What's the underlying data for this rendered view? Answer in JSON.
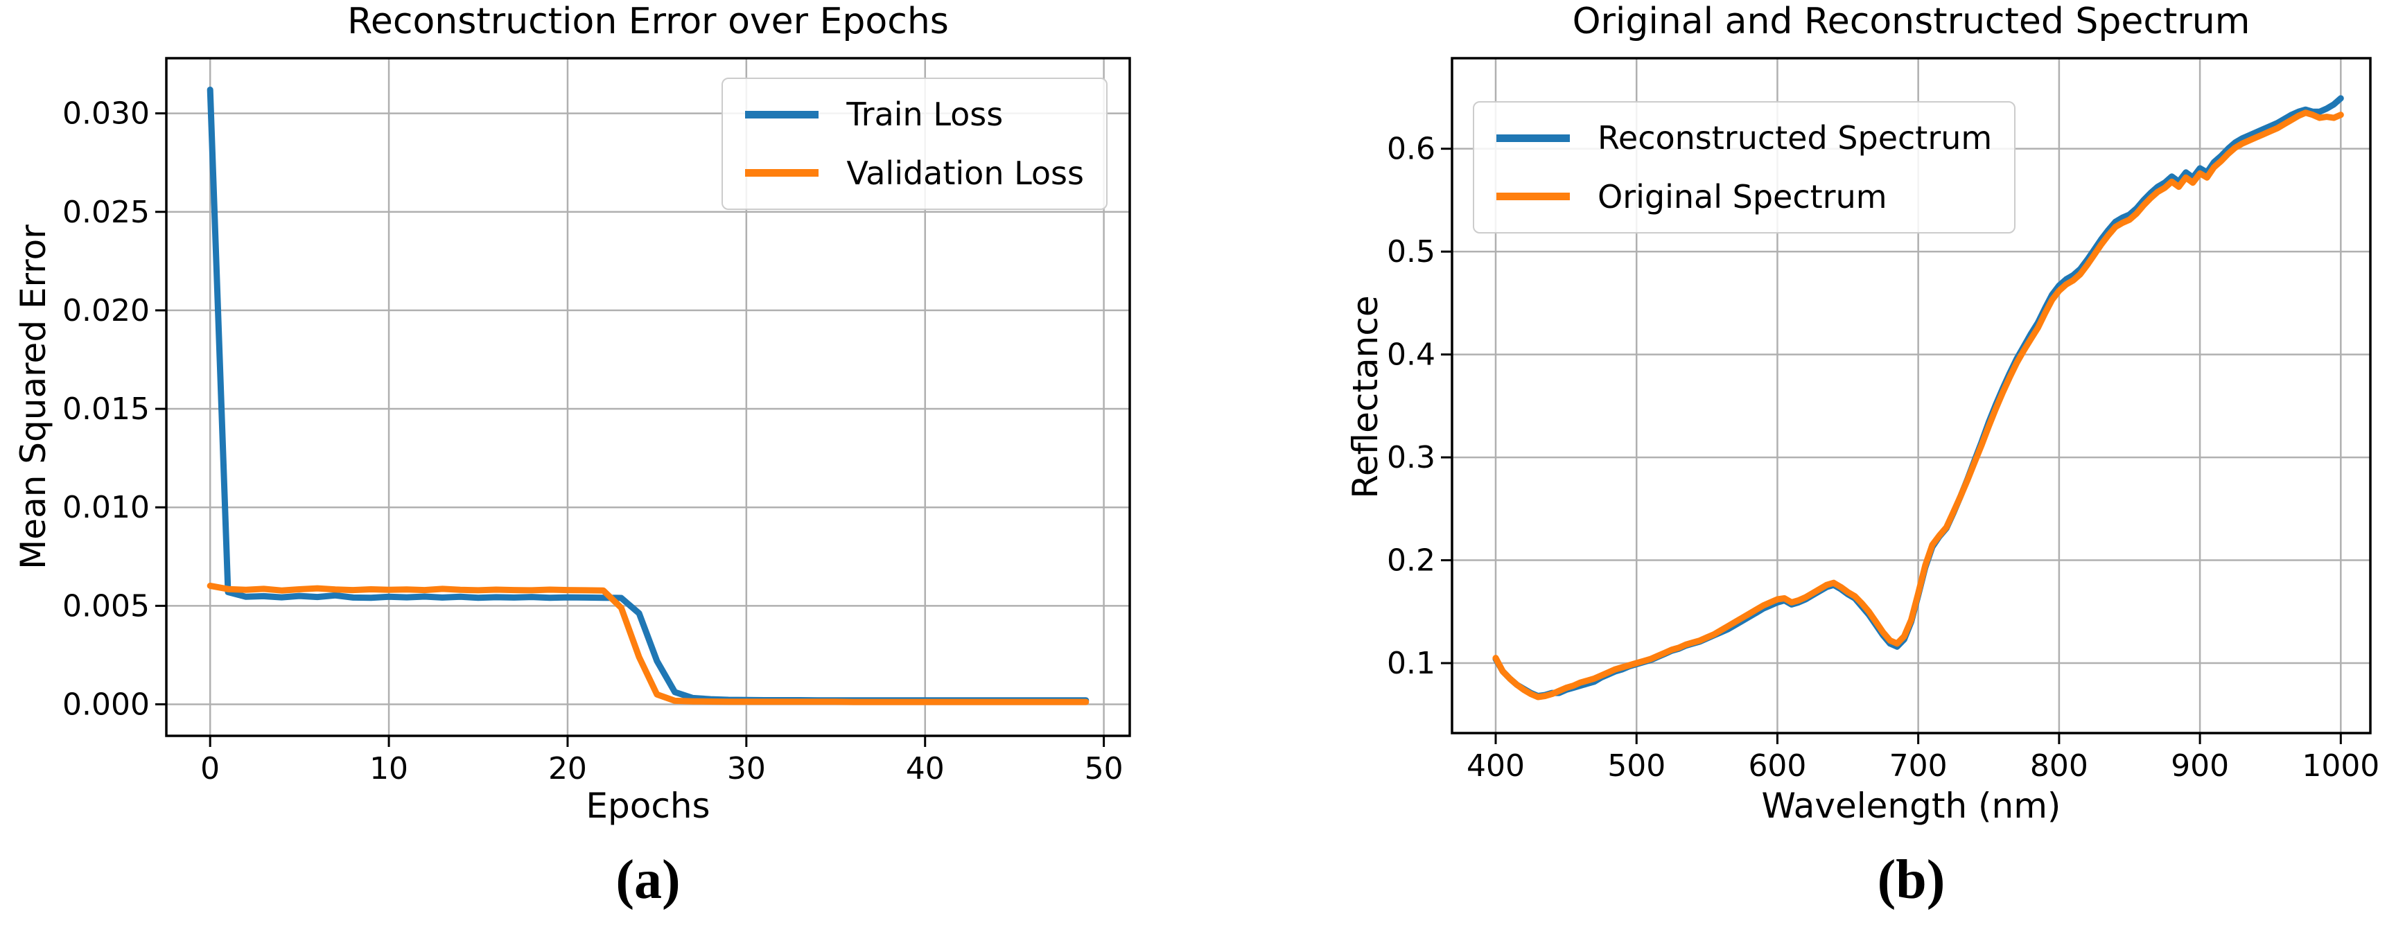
{
  "style": {
    "background": "#ffffff",
    "grid_color": "#b0b0b0",
    "spine_color": "#000000",
    "text_color": "#000000",
    "legend_border": "#cccccc",
    "accent_blue": "#1f77b4",
    "accent_orange": "#ff7f0e"
  },
  "captions": {
    "left": "(a)",
    "right": "(b)"
  },
  "chart_data": [
    {
      "id": "reconstruction-error",
      "type": "line",
      "title": "Reconstruction Error over Epochs",
      "xlabel": "Epochs",
      "ylabel": "Mean Squared Error",
      "grid": true,
      "legend_position": "upper-right",
      "xlim": [
        -2.45,
        51.45
      ],
      "ylim": [
        -0.0016,
        0.0328
      ],
      "xticks": [
        0,
        10,
        20,
        30,
        40,
        50
      ],
      "xtick_labels": [
        "0",
        "10",
        "20",
        "30",
        "40",
        "50"
      ],
      "yticks": [
        0.0,
        0.005,
        0.01,
        0.015,
        0.02,
        0.025,
        0.03
      ],
      "ytick_labels": [
        "0.000",
        "0.005",
        "0.010",
        "0.015",
        "0.020",
        "0.025",
        "0.030"
      ],
      "series": [
        {
          "name": "Train Loss",
          "color": "#1f77b4",
          "x": [
            0,
            1,
            2,
            3,
            4,
            5,
            6,
            7,
            8,
            9,
            10,
            11,
            12,
            13,
            14,
            15,
            16,
            17,
            18,
            19,
            20,
            21,
            22,
            23,
            24,
            25,
            26,
            27,
            28,
            29,
            30,
            31,
            32,
            33,
            34,
            35,
            36,
            37,
            38,
            39,
            40,
            41,
            42,
            43,
            44,
            45,
            46,
            47,
            48,
            49
          ],
          "y": [
            0.0312,
            0.0057,
            0.00546,
            0.00549,
            0.00543,
            0.0055,
            0.00545,
            0.00553,
            0.00542,
            0.00541,
            0.00546,
            0.00543,
            0.00547,
            0.00542,
            0.00546,
            0.00541,
            0.00544,
            0.00542,
            0.00545,
            0.00541,
            0.00543,
            0.00542,
            0.00541,
            0.0054,
            0.00462,
            0.0022,
            0.00062,
            0.00032,
            0.00026,
            0.00023,
            0.00022,
            0.00021,
            0.00021,
            0.00021,
            0.0002,
            0.0002,
            0.0002,
            0.0002,
            0.0002,
            0.0002,
            0.0002,
            0.0002,
            0.0002,
            0.0002,
            0.0002,
            0.0002,
            0.0002,
            0.0002,
            0.0002,
            0.0002
          ]
        },
        {
          "name": "Validation Loss",
          "color": "#ff7f0e",
          "x": [
            0,
            1,
            2,
            3,
            4,
            5,
            6,
            7,
            8,
            9,
            10,
            11,
            12,
            13,
            14,
            15,
            16,
            17,
            18,
            19,
            20,
            21,
            22,
            23,
            24,
            25,
            26,
            27,
            28,
            29,
            30,
            31,
            32,
            33,
            34,
            35,
            36,
            37,
            38,
            39,
            40,
            41,
            42,
            43,
            44,
            45,
            46,
            47,
            48,
            49
          ],
          "y": [
            0.00602,
            0.00585,
            0.00581,
            0.00586,
            0.00578,
            0.00584,
            0.00589,
            0.00583,
            0.0058,
            0.00584,
            0.00581,
            0.00583,
            0.0058,
            0.00586,
            0.00581,
            0.00579,
            0.00582,
            0.0058,
            0.00579,
            0.00582,
            0.0058,
            0.00579,
            0.00578,
            0.0049,
            0.0024,
            0.0005,
            0.00018,
            0.00015,
            0.00014,
            0.00013,
            0.00013,
            0.00013,
            0.00013,
            0.00013,
            0.00013,
            0.00013,
            0.00012,
            0.00012,
            0.00012,
            0.00012,
            0.00012,
            0.00012,
            0.00012,
            0.00012,
            0.00012,
            0.00012,
            0.00012,
            0.00012,
            0.00012,
            0.00012
          ]
        }
      ]
    },
    {
      "id": "spectrum",
      "type": "line",
      "title": "Original and Reconstructed Spectrum",
      "xlabel": "Wavelength (nm)",
      "ylabel": "Reflectance",
      "grid": true,
      "legend_position": "upper-left",
      "xlim": [
        369,
        1021
      ],
      "ylim": [
        0.032,
        0.688
      ],
      "xticks": [
        400,
        500,
        600,
        700,
        800,
        900,
        1000
      ],
      "xtick_labels": [
        "400",
        "500",
        "600",
        "700",
        "800",
        "900",
        "1000"
      ],
      "yticks": [
        0.1,
        0.2,
        0.3,
        0.4,
        0.5,
        0.6
      ],
      "ytick_labels": [
        "0.1",
        "0.2",
        "0.3",
        "0.4",
        "0.5",
        "0.6"
      ],
      "series": [
        {
          "name": "Reconstructed Spectrum",
          "color": "#1f77b4",
          "x": [
            400,
            405,
            410,
            415,
            420,
            425,
            430,
            435,
            440,
            445,
            450,
            455,
            460,
            465,
            470,
            475,
            480,
            485,
            490,
            495,
            500,
            505,
            510,
            515,
            520,
            525,
            530,
            535,
            540,
            545,
            550,
            555,
            560,
            565,
            570,
            575,
            580,
            585,
            590,
            595,
            600,
            605,
            610,
            615,
            620,
            625,
            630,
            635,
            640,
            645,
            650,
            655,
            660,
            665,
            670,
            675,
            680,
            685,
            690,
            695,
            700,
            705,
            710,
            715,
            720,
            725,
            730,
            735,
            740,
            745,
            750,
            755,
            760,
            765,
            770,
            775,
            780,
            785,
            790,
            795,
            800,
            805,
            810,
            815,
            820,
            825,
            830,
            835,
            840,
            845,
            850,
            855,
            860,
            865,
            870,
            875,
            880,
            885,
            890,
            895,
            900,
            905,
            910,
            915,
            920,
            925,
            930,
            935,
            940,
            945,
            950,
            955,
            960,
            965,
            970,
            975,
            980,
            985,
            990,
            995,
            1000
          ],
          "y": [
            0.104,
            0.092,
            0.085,
            0.079,
            0.075,
            0.071,
            0.068,
            0.069,
            0.071,
            0.071,
            0.074,
            0.076,
            0.078,
            0.08,
            0.082,
            0.086,
            0.089,
            0.092,
            0.094,
            0.097,
            0.099,
            0.101,
            0.103,
            0.106,
            0.109,
            0.112,
            0.114,
            0.117,
            0.119,
            0.121,
            0.124,
            0.127,
            0.13,
            0.133,
            0.137,
            0.141,
            0.145,
            0.149,
            0.153,
            0.156,
            0.159,
            0.161,
            0.157,
            0.159,
            0.162,
            0.166,
            0.17,
            0.174,
            0.176,
            0.172,
            0.167,
            0.163,
            0.155,
            0.147,
            0.137,
            0.127,
            0.119,
            0.116,
            0.123,
            0.14,
            0.166,
            0.193,
            0.213,
            0.223,
            0.231,
            0.246,
            0.262,
            0.279,
            0.297,
            0.315,
            0.334,
            0.351,
            0.367,
            0.382,
            0.396,
            0.408,
            0.42,
            0.431,
            0.445,
            0.458,
            0.467,
            0.473,
            0.477,
            0.483,
            0.492,
            0.502,
            0.512,
            0.521,
            0.529,
            0.533,
            0.536,
            0.542,
            0.55,
            0.557,
            0.563,
            0.567,
            0.573,
            0.568,
            0.577,
            0.572,
            0.581,
            0.577,
            0.587,
            0.593,
            0.6,
            0.606,
            0.61,
            0.613,
            0.616,
            0.619,
            0.622,
            0.625,
            0.629,
            0.633,
            0.636,
            0.638,
            0.636,
            0.636,
            0.639,
            0.643,
            0.649
          ]
        },
        {
          "name": "Original Spectrum",
          "color": "#ff7f0e",
          "x": [
            400,
            405,
            410,
            415,
            420,
            425,
            430,
            435,
            440,
            445,
            450,
            455,
            460,
            465,
            470,
            475,
            480,
            485,
            490,
            495,
            500,
            505,
            510,
            515,
            520,
            525,
            530,
            535,
            540,
            545,
            550,
            555,
            560,
            565,
            570,
            575,
            580,
            585,
            590,
            595,
            600,
            605,
            610,
            615,
            620,
            625,
            630,
            635,
            640,
            645,
            650,
            655,
            660,
            665,
            670,
            675,
            680,
            685,
            690,
            695,
            700,
            705,
            710,
            715,
            720,
            725,
            730,
            735,
            740,
            745,
            750,
            755,
            760,
            765,
            770,
            775,
            780,
            785,
            790,
            795,
            800,
            805,
            810,
            815,
            820,
            825,
            830,
            835,
            840,
            845,
            850,
            855,
            860,
            865,
            870,
            875,
            880,
            885,
            890,
            895,
            900,
            905,
            910,
            915,
            920,
            925,
            930,
            935,
            940,
            945,
            950,
            955,
            960,
            965,
            970,
            975,
            980,
            985,
            990,
            995,
            1000
          ],
          "y": [
            0.105,
            0.092,
            0.085,
            0.079,
            0.074,
            0.07,
            0.067,
            0.068,
            0.07,
            0.073,
            0.076,
            0.078,
            0.081,
            0.083,
            0.085,
            0.088,
            0.091,
            0.094,
            0.096,
            0.098,
            0.1,
            0.102,
            0.104,
            0.107,
            0.11,
            0.113,
            0.115,
            0.118,
            0.12,
            0.122,
            0.125,
            0.128,
            0.132,
            0.136,
            0.14,
            0.144,
            0.148,
            0.152,
            0.156,
            0.159,
            0.162,
            0.163,
            0.159,
            0.161,
            0.164,
            0.168,
            0.172,
            0.176,
            0.178,
            0.174,
            0.169,
            0.165,
            0.158,
            0.15,
            0.14,
            0.13,
            0.122,
            0.119,
            0.126,
            0.142,
            0.168,
            0.195,
            0.215,
            0.224,
            0.232,
            0.247,
            0.262,
            0.278,
            0.295,
            0.312,
            0.33,
            0.347,
            0.363,
            0.378,
            0.392,
            0.404,
            0.415,
            0.426,
            0.44,
            0.453,
            0.462,
            0.468,
            0.472,
            0.478,
            0.487,
            0.497,
            0.507,
            0.516,
            0.524,
            0.528,
            0.531,
            0.537,
            0.545,
            0.552,
            0.558,
            0.562,
            0.568,
            0.563,
            0.572,
            0.567,
            0.576,
            0.572,
            0.582,
            0.588,
            0.595,
            0.601,
            0.605,
            0.608,
            0.611,
            0.614,
            0.617,
            0.62,
            0.624,
            0.628,
            0.632,
            0.635,
            0.633,
            0.63,
            0.631,
            0.63,
            0.633
          ]
        }
      ]
    }
  ]
}
